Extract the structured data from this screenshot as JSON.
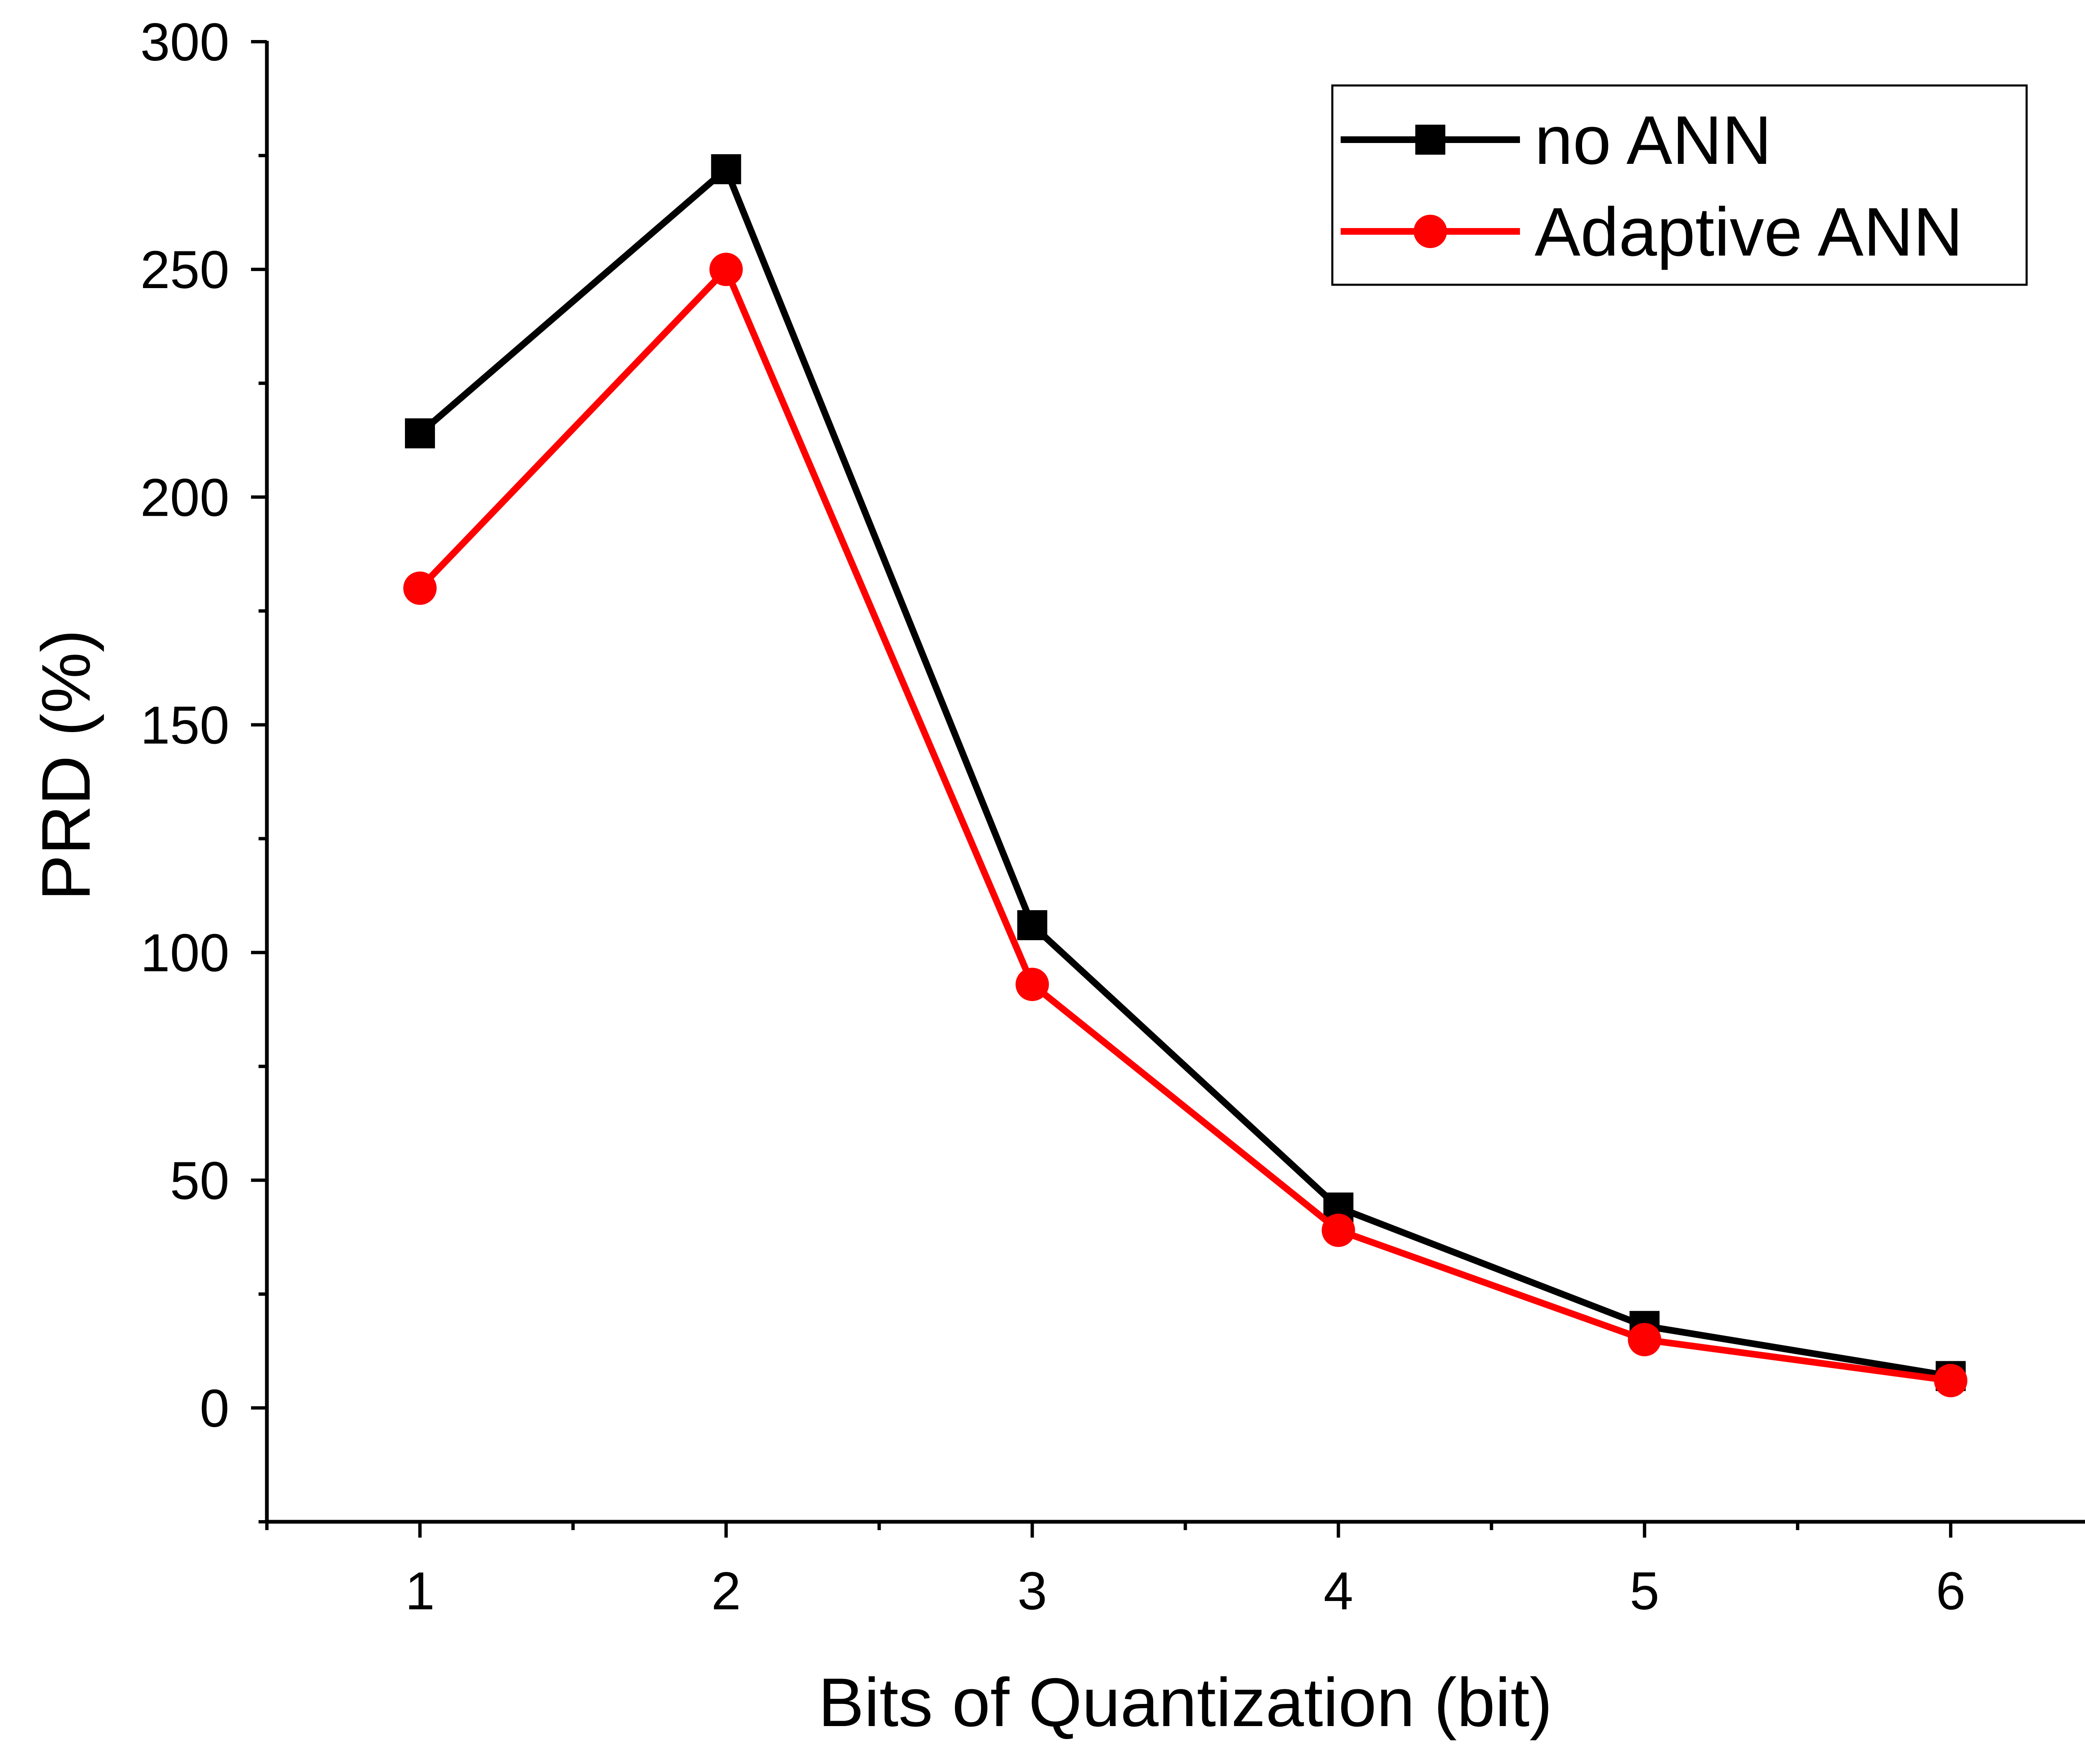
{
  "chart_data": {
    "type": "line",
    "title": "",
    "xlabel": "Bits of Quantization (bit)",
    "ylabel": "PRD (%)",
    "x": [
      1,
      2,
      3,
      4,
      5,
      6
    ],
    "xlim": [
      0.5,
      6.5
    ],
    "ylim": [
      -25,
      300
    ],
    "xticks": [
      1,
      2,
      3,
      4,
      5,
      6
    ],
    "yticks": [
      0,
      50,
      100,
      150,
      200,
      250,
      300
    ],
    "grid": false,
    "legend_position": "top-right",
    "series": [
      {
        "name": "no ANN",
        "marker": "square",
        "color": "#000000",
        "values": [
          214,
          272,
          106,
          44,
          18,
          7
        ]
      },
      {
        "name": "Adaptive ANN",
        "marker": "circle",
        "color": "#ff0000",
        "values": [
          180,
          250,
          93,
          39,
          15,
          6
        ]
      }
    ]
  }
}
